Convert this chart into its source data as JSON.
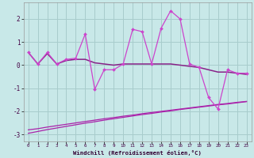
{
  "xlabel": "Windchill (Refroidissement éolien,°C)",
  "bg_color": "#c8e8e8",
  "grid_color": "#a8cccc",
  "line_noisy_color": "#cc44cc",
  "line_smooth_color": "#882288",
  "line_low_color": "#aa22aa",
  "x": [
    0,
    1,
    2,
    3,
    4,
    5,
    6,
    7,
    8,
    9,
    10,
    11,
    12,
    13,
    14,
    15,
    16,
    17,
    18,
    19,
    20,
    21,
    22,
    23
  ],
  "y_noisy": [
    0.55,
    0.05,
    0.55,
    0.05,
    0.25,
    0.3,
    1.35,
    -1.05,
    -0.2,
    -0.2,
    0.05,
    1.55,
    1.45,
    0.05,
    1.6,
    2.35,
    2.0,
    0.05,
    -0.1,
    -1.4,
    -1.9,
    -0.2,
    -0.35,
    -0.35
  ],
  "y_smooth": [
    0.55,
    0.05,
    0.5,
    0.05,
    0.2,
    0.25,
    0.25,
    0.1,
    0.05,
    0.0,
    0.05,
    0.05,
    0.05,
    0.05,
    0.05,
    0.05,
    0.0,
    -0.05,
    -0.1,
    -0.2,
    -0.3,
    -0.3,
    -0.35,
    -0.4
  ],
  "y_low1": [
    -2.8,
    -2.75,
    -2.68,
    -2.62,
    -2.56,
    -2.5,
    -2.44,
    -2.38,
    -2.32,
    -2.27,
    -2.21,
    -2.16,
    -2.1,
    -2.05,
    -2.0,
    -1.95,
    -1.9,
    -1.85,
    -1.8,
    -1.75,
    -1.7,
    -1.66,
    -1.61,
    -1.57
  ],
  "y_low2": [
    -2.95,
    -2.87,
    -2.79,
    -2.72,
    -2.65,
    -2.58,
    -2.51,
    -2.45,
    -2.38,
    -2.32,
    -2.26,
    -2.2,
    -2.14,
    -2.09,
    -2.03,
    -1.98,
    -1.92,
    -1.87,
    -1.82,
    -1.77,
    -1.72,
    -1.68,
    -1.63,
    -1.58
  ],
  "ylim": [
    -3.3,
    2.7
  ],
  "xlim": [
    -0.5,
    23.5
  ],
  "yticks": [
    -3,
    -2,
    -1,
    0,
    1,
    2
  ],
  "xticks": [
    0,
    1,
    2,
    3,
    4,
    5,
    6,
    7,
    8,
    9,
    10,
    11,
    12,
    13,
    14,
    15,
    16,
    17,
    18,
    19,
    20,
    21,
    22,
    23
  ]
}
